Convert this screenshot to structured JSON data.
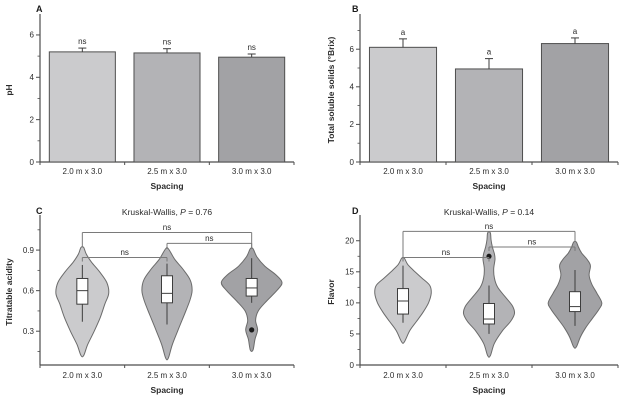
{
  "colors": {
    "series": [
      "#cbcbcd",
      "#b3b3b6",
      "#a2a2a5"
    ],
    "axis": "#4d4d4d",
    "outline": "#6b6b6b",
    "box_stroke": "#3d3d3d",
    "bracket": "#7a7a7a",
    "outlier": "#1a1a1a"
  },
  "chart_data": [
    {
      "panel_label": "A",
      "type": "bar",
      "title": "",
      "xlabel": "Spacing",
      "ylabel": "pH",
      "categories": [
        "2.0 m x 3.0",
        "2.5 m x 3.0",
        "3.0 m x 3.0"
      ],
      "values": [
        5.2,
        5.15,
        4.95
      ],
      "errors": [
        0.18,
        0.2,
        0.15
      ],
      "bar_annotations": [
        "ns",
        "ns",
        "ns"
      ],
      "ylim": [
        0,
        6.8
      ],
      "yticks": [
        0,
        2,
        4,
        6
      ],
      "ytick_labels": [
        "0",
        "2",
        "4",
        "6"
      ],
      "yticks_minor": [
        1,
        3,
        5
      ]
    },
    {
      "panel_label": "B",
      "type": "bar",
      "title": "",
      "xlabel": "Spacing",
      "ylabel": "Total soluble solids (°Brix)",
      "categories": [
        "2.0 m x 3.0",
        "2.5 m x 3.0",
        "3.0 m x 3.0"
      ],
      "values": [
        6.1,
        4.95,
        6.3
      ],
      "errors": [
        0.45,
        0.55,
        0.3
      ],
      "bar_annotations": [
        "a",
        "a",
        "a"
      ],
      "ylim": [
        0,
        7.66
      ],
      "yticks": [
        0,
        2,
        4,
        6
      ],
      "ytick_labels": [
        "0",
        "2",
        "4",
        "6"
      ],
      "yticks_minor": [
        1,
        3,
        5,
        7
      ]
    },
    {
      "panel_label": "C",
      "type": "violin",
      "title": "Kruskal-Wallis, P = 0.76",
      "xlabel": "Spacing",
      "ylabel": "Titratable acidity",
      "categories": [
        "2.0 m x 3.0",
        "2.5 m x 3.0",
        "3.0 m x 3.0"
      ],
      "ylim": [
        0.05,
        1.13
      ],
      "yticks": [
        0.3,
        0.6,
        0.9
      ],
      "ytick_labels": [
        "0.3",
        "0.6",
        "0.9"
      ],
      "yticks_minor": [
        0.15,
        0.45,
        0.75,
        1.05
      ],
      "violins": [
        {
          "median": 0.6,
          "q1": 0.5,
          "q3": 0.69,
          "whisker_low": 0.37,
          "whisker_high": 0.79,
          "outliers": [],
          "profile": [
            [
              0.12,
              0.02
            ],
            [
              0.2,
              0.08
            ],
            [
              0.3,
              0.18
            ],
            [
              0.4,
              0.27
            ],
            [
              0.5,
              0.34
            ],
            [
              0.58,
              0.4
            ],
            [
              0.66,
              0.37
            ],
            [
              0.74,
              0.26
            ],
            [
              0.81,
              0.14
            ],
            [
              0.87,
              0.06
            ],
            [
              0.92,
              0.02
            ]
          ]
        },
        {
          "median": 0.58,
          "q1": 0.51,
          "q3": 0.71,
          "whisker_low": 0.35,
          "whisker_high": 0.8,
          "outliers": [],
          "profile": [
            [
              0.1,
              0.02
            ],
            [
              0.2,
              0.08
            ],
            [
              0.3,
              0.16
            ],
            [
              0.42,
              0.26
            ],
            [
              0.52,
              0.34
            ],
            [
              0.6,
              0.38
            ],
            [
              0.68,
              0.35
            ],
            [
              0.76,
              0.24
            ],
            [
              0.83,
              0.12
            ],
            [
              0.91,
              0.02
            ]
          ]
        },
        {
          "median": 0.62,
          "q1": 0.56,
          "q3": 0.69,
          "whisker_low": 0.51,
          "whisker_high": 0.84,
          "outliers": [
            0.31
          ],
          "profile": [
            [
              0.16,
              0.02
            ],
            [
              0.24,
              0.05
            ],
            [
              0.31,
              0.09
            ],
            [
              0.38,
              0.06
            ],
            [
              0.45,
              0.1
            ],
            [
              0.52,
              0.22
            ],
            [
              0.6,
              0.38
            ],
            [
              0.66,
              0.46
            ],
            [
              0.72,
              0.36
            ],
            [
              0.78,
              0.2
            ],
            [
              0.85,
              0.08
            ],
            [
              0.91,
              0.02
            ]
          ]
        }
      ],
      "comparisons": [
        {
          "from": 0,
          "to": 2,
          "label": "ns",
          "y": 1.03
        },
        {
          "from": 1,
          "to": 2,
          "label": "ns",
          "y": 0.95
        },
        {
          "from": 0,
          "to": 1,
          "label": "ns",
          "y": 0.845
        }
      ]
    },
    {
      "panel_label": "D",
      "type": "violin",
      "title": "Kruskal-Wallis, P = 0.14",
      "xlabel": "Spacing",
      "ylabel": "Flavor",
      "categories": [
        "2.0 m x 3.0",
        "2.5 m x 3.0",
        "3.0 m x 3.0"
      ],
      "ylim": [
        0,
        23.5
      ],
      "yticks": [
        0,
        5,
        10,
        15,
        20
      ],
      "ytick_labels": [
        "0",
        "5",
        "10",
        "15",
        "20"
      ],
      "yticks_minor": [
        2.5,
        7.5,
        12.5,
        17.5
      ],
      "violins": [
        {
          "median": 10.3,
          "q1": 8.2,
          "q3": 12.3,
          "whisker_low": 6.8,
          "whisker_high": 16.0,
          "outliers": [],
          "profile": [
            [
              3.7,
              0.02
            ],
            [
              5.5,
              0.1
            ],
            [
              7.0,
              0.2
            ],
            [
              8.5,
              0.3
            ],
            [
              10.0,
              0.38
            ],
            [
              11.5,
              0.42
            ],
            [
              12.8,
              0.4
            ],
            [
              14.0,
              0.28
            ],
            [
              15.2,
              0.16
            ],
            [
              16.2,
              0.07
            ],
            [
              17.2,
              0.02
            ]
          ]
        },
        {
          "median": 7.4,
          "q1": 6.6,
          "q3": 9.9,
          "whisker_low": 5.0,
          "whisker_high": 12.8,
          "outliers": [
            17.5
          ],
          "profile": [
            [
              1.5,
              0.02
            ],
            [
              3.5,
              0.08
            ],
            [
              5.5,
              0.2
            ],
            [
              7.0,
              0.32
            ],
            [
              8.3,
              0.38
            ],
            [
              9.5,
              0.35
            ],
            [
              11.0,
              0.24
            ],
            [
              12.5,
              0.13
            ],
            [
              14.0,
              0.08
            ],
            [
              15.5,
              0.07
            ],
            [
              17.0,
              0.09
            ],
            [
              17.9,
              0.08
            ],
            [
              19.0,
              0.05
            ],
            [
              20.2,
              0.03
            ],
            [
              21.3,
              0.02
            ]
          ]
        },
        {
          "median": 9.4,
          "q1": 8.6,
          "q3": 11.8,
          "whisker_low": 6.3,
          "whisker_high": 15.3,
          "outliers": [],
          "profile": [
            [
              2.9,
              0.02
            ],
            [
              4.5,
              0.08
            ],
            [
              6.0,
              0.16
            ],
            [
              7.5,
              0.26
            ],
            [
              9.0,
              0.36
            ],
            [
              10.0,
              0.4
            ],
            [
              11.5,
              0.33
            ],
            [
              13.0,
              0.25
            ],
            [
              14.5,
              0.21
            ],
            [
              16.0,
              0.23
            ],
            [
              17.0,
              0.18
            ],
            [
              18.0,
              0.1
            ],
            [
              19.0,
              0.05
            ],
            [
              19.8,
              0.02
            ]
          ]
        }
      ],
      "comparisons": [
        {
          "from": 0,
          "to": 2,
          "label": "ns",
          "y": 21.5
        },
        {
          "from": 1,
          "to": 2,
          "label": "ns",
          "y": 19.0
        },
        {
          "from": 0,
          "to": 1,
          "label": "ns",
          "y": 17.3
        }
      ]
    }
  ]
}
